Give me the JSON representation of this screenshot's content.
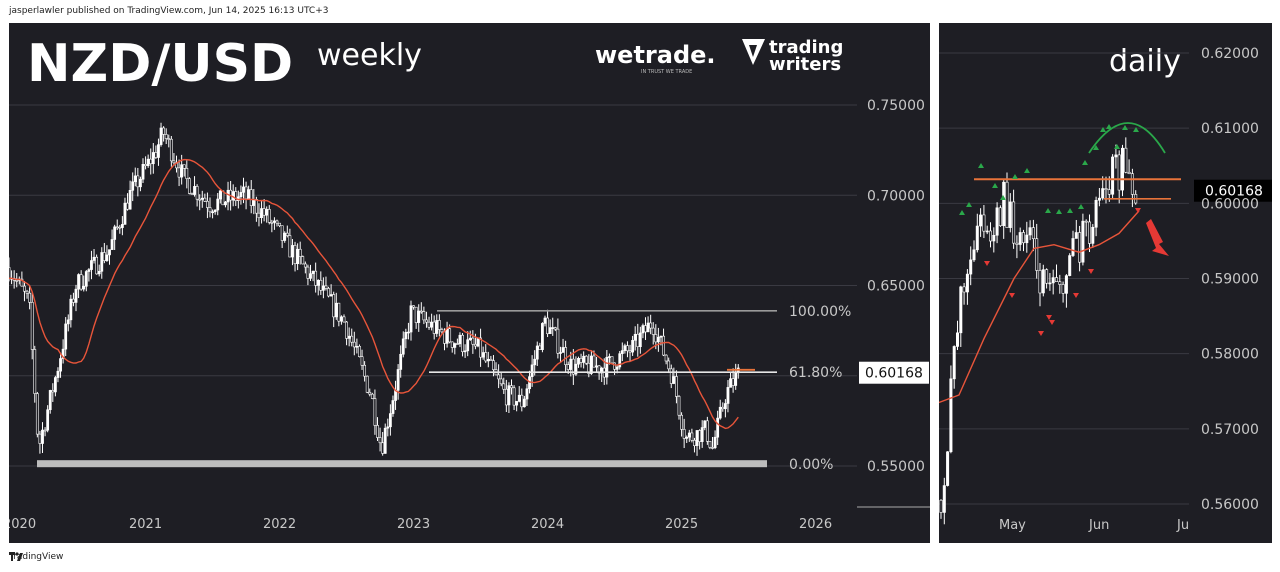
{
  "header": {
    "published_text": "jasperlawler published on TradingView.com, Jun 14, 2025 16:13 UTC+3"
  },
  "footer": {
    "brand": "TradingView",
    "icon": "tradingview-logo-icon"
  },
  "weekly": {
    "title": "NZD/USD",
    "subtitle": "weekly",
    "logos": {
      "wetrade": "wetrade.",
      "wetrade_tagline": "IN TRUST WE TRADE",
      "tw_line1": "trading",
      "tw_line2": "writers"
    },
    "price_labels": [
      "0.75000",
      "0.70000",
      "0.65000",
      "0.55000"
    ],
    "current_price": "0.60168",
    "fib_labels": {
      "f100": "100.00%",
      "f618": "61.80%",
      "f0": "0.00%"
    },
    "year_labels": [
      "2020",
      "2021",
      "2022",
      "2023",
      "2024",
      "2025",
      "2026"
    ],
    "colors": {
      "bg": "#1e1e24",
      "candle": "#ffffff",
      "ma": "#e8553a",
      "fib": "#d0d0d0",
      "resistance": "#e8733a"
    }
  },
  "daily": {
    "subtitle": "daily",
    "price_labels": [
      "0.62000",
      "0.61000",
      "0.60000",
      "0.59000",
      "0.58000",
      "0.57000",
      "0.56000"
    ],
    "current_price": "0.60168",
    "month_labels": [
      "May",
      "Jun",
      "Ju"
    ],
    "colors": {
      "up_marker": "#2aa84a",
      "down_marker": "#e53935",
      "arc": "#2aa84a",
      "arrow": "#e53935",
      "level": "#e8733a",
      "ma": "#e8553a"
    }
  },
  "chart_data": [
    {
      "type": "candlestick",
      "title": "NZD/USD",
      "subtitle": "weekly",
      "x_axis_ticks": [
        "2020",
        "2021",
        "2022",
        "2023",
        "2024",
        "2025",
        "2026"
      ],
      "ylim": [
        0.53,
        0.77
      ],
      "y_ticks": [
        0.55,
        0.65,
        0.7,
        0.75
      ],
      "series_close_path": [
        [
          2020.0,
          0.66
        ],
        [
          2020.15,
          0.64
        ],
        [
          2020.22,
          0.56
        ],
        [
          2020.35,
          0.6
        ],
        [
          2020.5,
          0.65
        ],
        [
          2020.75,
          0.67
        ],
        [
          2020.9,
          0.7
        ],
        [
          2021.1,
          0.725
        ],
        [
          2021.15,
          0.735
        ],
        [
          2021.3,
          0.71
        ],
        [
          2021.5,
          0.695
        ],
        [
          2021.75,
          0.7
        ],
        [
          2021.9,
          0.69
        ],
        [
          2022.1,
          0.67
        ],
        [
          2022.3,
          0.65
        ],
        [
          2022.5,
          0.63
        ],
        [
          2022.7,
          0.59
        ],
        [
          2022.78,
          0.56
        ],
        [
          2022.9,
          0.6
        ],
        [
          2023.0,
          0.635
        ],
        [
          2023.1,
          0.63
        ],
        [
          2023.3,
          0.62
        ],
        [
          2023.5,
          0.615
        ],
        [
          2023.7,
          0.59
        ],
        [
          2023.83,
          0.585
        ],
        [
          2024.0,
          0.63
        ],
        [
          2024.2,
          0.605
        ],
        [
          2024.45,
          0.605
        ],
        [
          2024.65,
          0.615
        ],
        [
          2024.8,
          0.63
        ],
        [
          2024.95,
          0.6
        ],
        [
          2025.05,
          0.565
        ],
        [
          2025.2,
          0.57
        ],
        [
          2025.25,
          0.56
        ],
        [
          2025.35,
          0.59
        ],
        [
          2025.45,
          0.602
        ]
      ],
      "fibonacci": {
        "level_100": 0.636,
        "level_61_8": 0.602,
        "level_0": 0.551
      },
      "current_price": 0.60168
    },
    {
      "type": "candlestick",
      "subtitle": "daily",
      "x_axis_ticks": [
        "May",
        "Jun",
        "Ju"
      ],
      "ylim": [
        0.559,
        0.623
      ],
      "y_ticks": [
        0.56,
        0.57,
        0.58,
        0.59,
        0.6,
        0.61,
        0.62
      ],
      "series_close_path": [
        [
          "Apr 8",
          0.561
        ],
        [
          "Apr 11",
          0.572
        ],
        [
          "Apr 15",
          0.585
        ],
        [
          "Apr 18",
          0.592
        ],
        [
          "Apr 24",
          0.597
        ],
        [
          "Apr 30",
          0.594
        ],
        [
          "May 6",
          0.601
        ],
        [
          "May 9",
          0.593
        ],
        [
          "May 14",
          0.586
        ],
        [
          "May 19",
          0.59
        ],
        [
          "May 23",
          0.594
        ],
        [
          "May 27",
          0.599
        ],
        [
          "Jun 2",
          0.602
        ],
        [
          "Jun 6",
          0.602
        ],
        [
          "Jun 10",
          0.605
        ],
        [
          "Jun 13",
          0.601
        ]
      ],
      "resistance_level": 0.6032,
      "support_level": 0.6006,
      "current_price": 0.60168
    }
  ]
}
